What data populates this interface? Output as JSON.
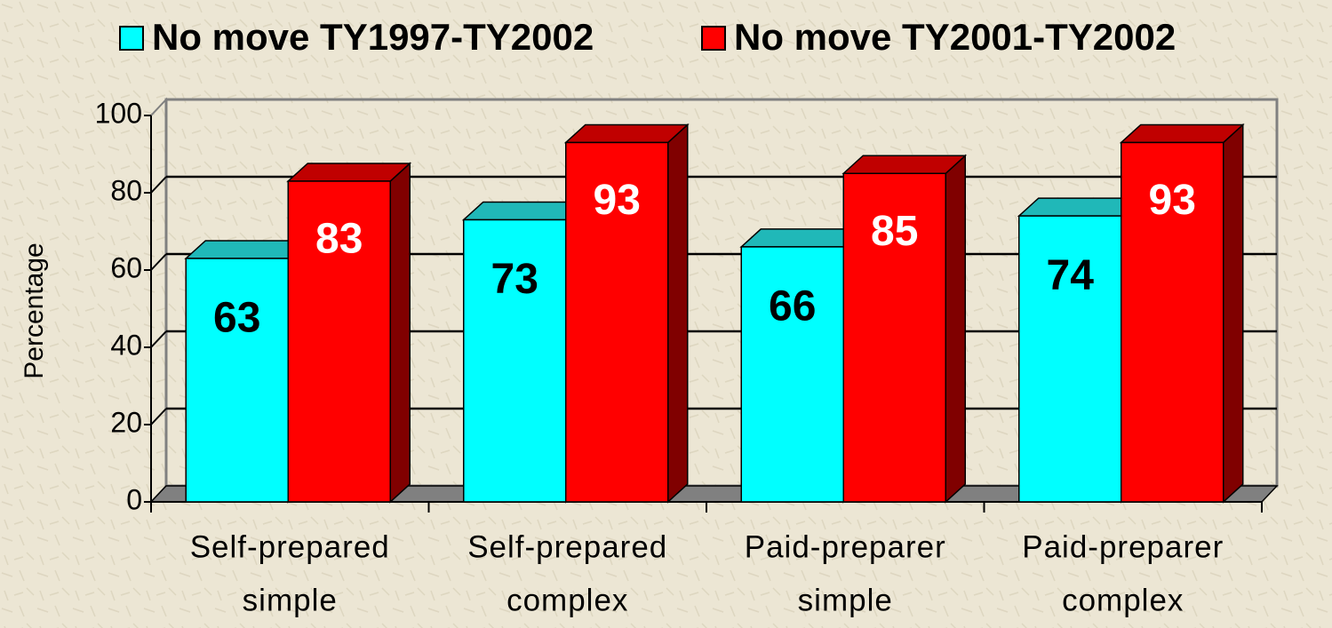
{
  "chart_data": {
    "type": "bar3d",
    "y_label": "Percentage",
    "categories": [
      [
        "Self-prepared",
        "simple"
      ],
      [
        "Self-prepared",
        "complex"
      ],
      [
        "Paid-preparer",
        "simple"
      ],
      [
        "Paid-preparer",
        "complex"
      ]
    ],
    "series": [
      {
        "name": "No move TY1997-TY2002",
        "color": "#00ffff",
        "values": [
          63,
          73,
          66,
          74
        ]
      },
      {
        "name": "No move TY2001-TY2002",
        "color": "#ff0000",
        "values": [
          83,
          93,
          85,
          93
        ]
      }
    ],
    "ylim": [
      0,
      100
    ],
    "yticks": [
      0,
      20,
      40,
      60,
      80,
      100
    ],
    "grid": true,
    "legend": "top"
  }
}
